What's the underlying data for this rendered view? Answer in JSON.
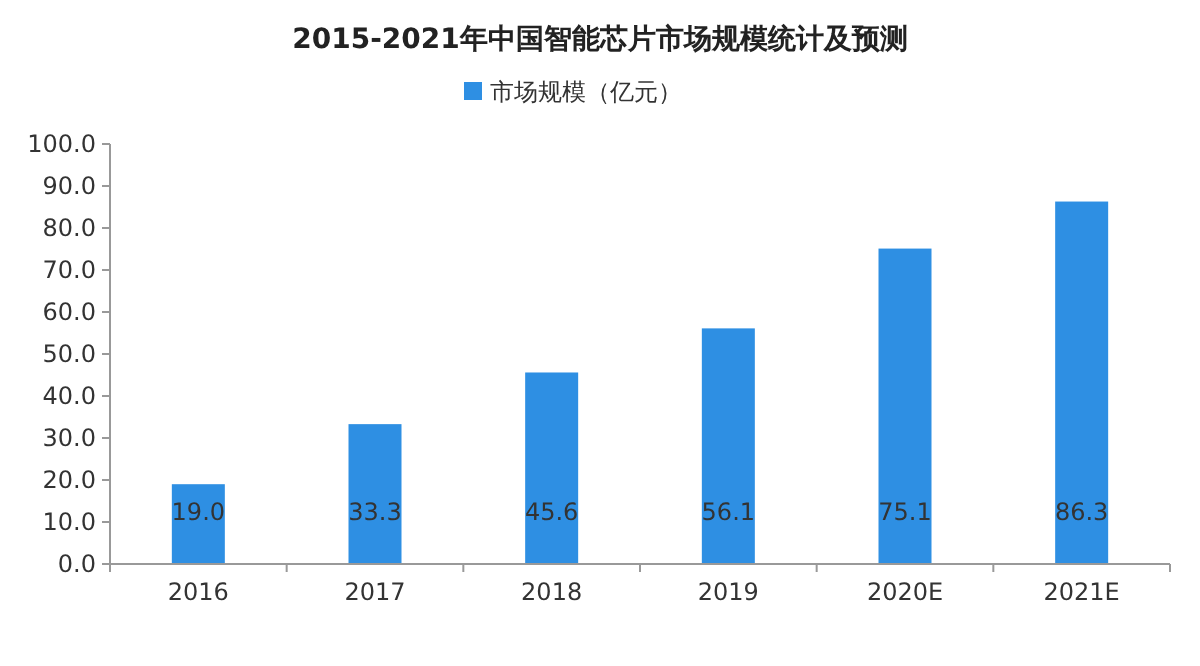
{
  "chart_data": {
    "type": "bar",
    "title": "2015-2021年中国智能芯片市场规模统计及预测",
    "categories": [
      "2016",
      "2017",
      "2018",
      "2019",
      "2020E",
      "2021E"
    ],
    "series": [
      {
        "name": "市场规模（亿元）",
        "color": "#2e8fe3",
        "values": [
          19.0,
          33.3,
          45.6,
          56.1,
          75.1,
          86.3
        ],
        "value_labels": [
          "19.0",
          "33.3",
          "45.6",
          "56.1",
          "75.1",
          "86.3"
        ]
      }
    ],
    "ylim": [
      0,
      100
    ],
    "yticks": [
      {
        "value": 0,
        "label": "0.0"
      },
      {
        "value": 10,
        "label": "10.0"
      },
      {
        "value": 20,
        "label": "20.0"
      },
      {
        "value": 30,
        "label": "30.0"
      },
      {
        "value": 40,
        "label": "40.0"
      },
      {
        "value": 50,
        "label": "50.0"
      },
      {
        "value": 60,
        "label": "60.0"
      },
      {
        "value": 70,
        "label": "70.0"
      },
      {
        "value": 80,
        "label": "80.0"
      },
      {
        "value": 90,
        "label": "90.0"
      },
      {
        "value": 100,
        "label": "100.0"
      }
    ],
    "legend": "top"
  }
}
